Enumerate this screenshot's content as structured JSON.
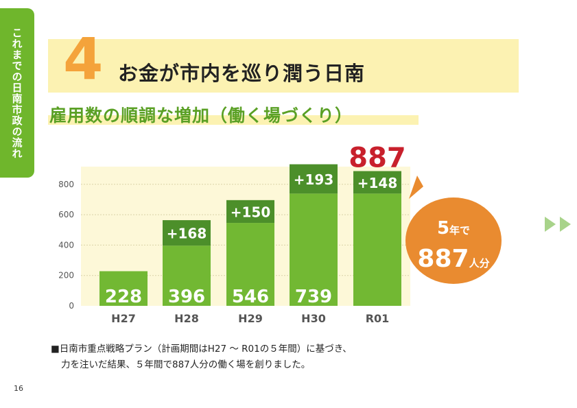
{
  "side_tab": {
    "label": "これまでの日南市政の流れ",
    "color": "#6fb62c"
  },
  "header": {
    "number": "4",
    "title": "お金が市内を巡り潤う日南",
    "subtitle": "雇用数の順調な増加（働く場づくり）"
  },
  "callout": {
    "line1_big": "5",
    "line1_small": "年で",
    "line2_big": "887",
    "line2_small": "人分",
    "color": "#e98b30"
  },
  "note": {
    "line1": "■日南市重点戦略プラン（計画期間はH27 ～ R01の５年間）に基づき、",
    "line2": "力を注いだ結果、５年間で887人分の働く場を創りました。"
  },
  "page_number": "16",
  "colors": {
    "bar_base": "#72b833",
    "bar_increment": "#4c8f2a",
    "total_label": "#c8202c",
    "accent_yellow": "#fcf2b2",
    "section_number": "#f4a33b"
  },
  "chart_data": {
    "type": "bar",
    "stacked": true,
    "categories": [
      "H27",
      "H28",
      "H29",
      "H30",
      "R01"
    ],
    "series": [
      {
        "values": [
          228,
          396,
          546,
          739,
          739
        ]
      },
      {
        "values": [
          0,
          168,
          150,
          193,
          148
        ]
      }
    ],
    "base_labels": [
      "228",
      "396",
      "546",
      "739",
      ""
    ],
    "increment_labels": [
      "",
      "+168",
      "+150",
      "+193",
      "+148"
    ],
    "total_label": "887",
    "yticks": [
      "0",
      "200",
      "400",
      "600",
      "800"
    ],
    "ylim": [
      0,
      880
    ],
    "grid": true
  }
}
